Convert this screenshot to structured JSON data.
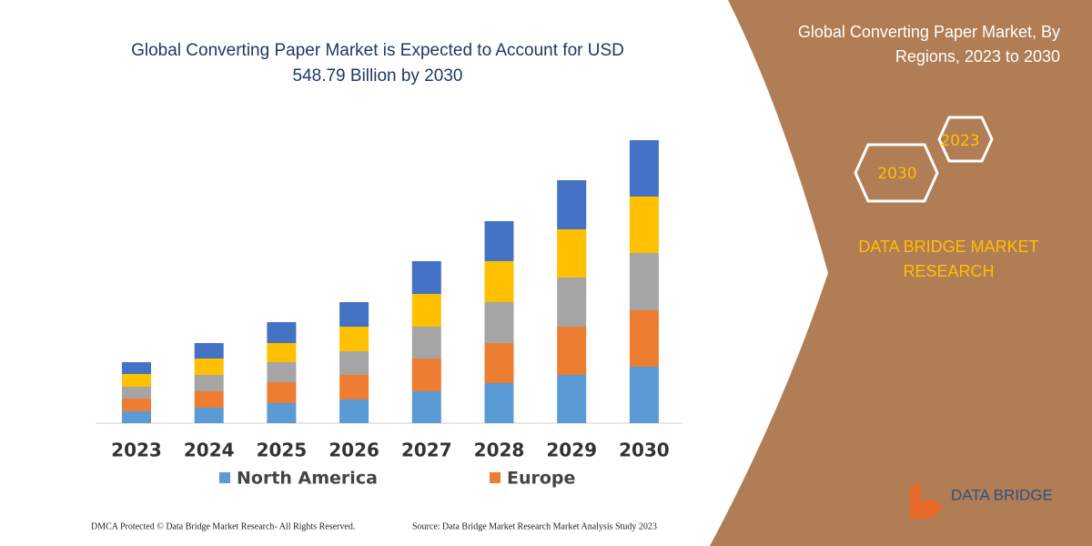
{
  "chart_data": {
    "type": "stacked-bar",
    "title": "Global Converting Paper Market is Expected to Account for USD 548.79 Billion by 2030",
    "categories": [
      "2023",
      "2024",
      "2025",
      "2026",
      "2027",
      "2028",
      "2029",
      "2030"
    ],
    "series": [
      {
        "name": "North America",
        "color": "#5b9bd5",
        "values": [
          13,
          17,
          22,
          26,
          35,
          44,
          53,
          62
        ]
      },
      {
        "name": "Europe",
        "color": "#ed7d31",
        "values": [
          14,
          18,
          23,
          27,
          36,
          44,
          53,
          62
        ]
      },
      {
        "color": "#a5a5a5",
        "values": [
          13,
          18,
          22,
          26,
          35,
          45,
          54,
          63
        ]
      },
      {
        "color": "#ffc000",
        "values": [
          14,
          18,
          21,
          27,
          36,
          45,
          53,
          62
        ]
      },
      {
        "color": "#4472c4",
        "values": [
          13,
          17,
          23,
          27,
          36,
          44,
          54,
          62
        ]
      }
    ]
  },
  "panel": {
    "title": "Global Converting Paper Market, By Regions, 2023 to 2030",
    "hexagons": [
      "2023",
      "2030"
    ],
    "brand": "DATA BRIDGE MARKET RESEARCH",
    "logo": "DATA BRIDGE"
  },
  "footer": {
    "copyright": "DMCA Protected © Data Bridge Market Research- All Rights Reserved.",
    "source": "Source: Data Bridge Market Research Market Analysis Study 2023"
  }
}
